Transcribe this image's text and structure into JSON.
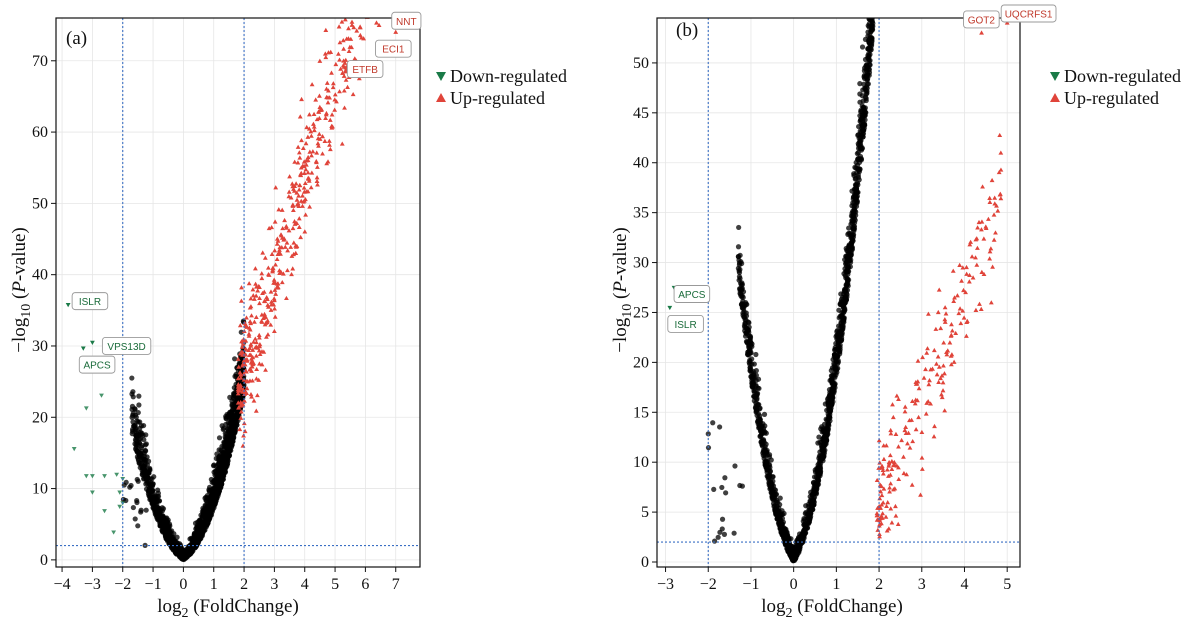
{
  "figure": {
    "legend": {
      "down_label": "Down-regulated",
      "up_label": "Up-regulated"
    },
    "colors": {
      "down": "#1a7a47",
      "up": "#e0443a",
      "ns": "#000000",
      "threshold": "#3a6fc4"
    }
  },
  "chart_data": [
    {
      "type": "scatter",
      "panel_label": "(a)",
      "xlabel": "log2 (FoldChange)",
      "ylabel": "−log10 (P-value)",
      "xlim": [
        -4.2,
        7.8
      ],
      "ylim": [
        -1,
        76
      ],
      "xticks": [
        -4,
        -3,
        -2,
        -1,
        0,
        1,
        2,
        3,
        4,
        5,
        6,
        7
      ],
      "yticks": [
        0,
        10,
        20,
        30,
        40,
        50,
        60,
        70
      ],
      "thresholds": {
        "x": [
          -2,
          2
        ],
        "y": 2
      },
      "grid": true,
      "legend_position": "outside-top-right",
      "labeled_genes": [
        {
          "name": "NNT",
          "x": 7.0,
          "y": 74.0,
          "group": "up"
        },
        {
          "name": "ECI1",
          "x": 6.4,
          "y": 69.8,
          "group": "up"
        },
        {
          "name": "ETFB",
          "x": 5.8,
          "y": 67.5,
          "group": "up"
        },
        {
          "name": "ISLR",
          "x": -3.8,
          "y": 35.8,
          "group": "down"
        },
        {
          "name": "VPS13D",
          "x": -3.0,
          "y": 30.5,
          "group": "down"
        },
        {
          "name": "APCS",
          "x": -3.3,
          "y": 29.7,
          "group": "down"
        }
      ],
      "down_points": [
        [
          -3.2,
          21.3
        ],
        [
          -2.7,
          23.1
        ],
        [
          -3.6,
          15.6
        ],
        [
          -3.0,
          11.8
        ],
        [
          -2.6,
          11.8
        ],
        [
          -3.2,
          11.8
        ],
        [
          -2.2,
          12.0
        ],
        [
          -2.0,
          11.4
        ],
        [
          -3.0,
          9.5
        ],
        [
          -2.1,
          7.5
        ],
        [
          -2.6,
          6.9
        ],
        [
          -2.3,
          3.9
        ],
        [
          -2.1,
          9.5
        ],
        [
          -2.0,
          8.0
        ]
      ]
    },
    {
      "type": "scatter",
      "panel_label": "(b)",
      "xlabel": "log2 (FoldChange)",
      "ylabel": "−log10 (P-value)",
      "xlim": [
        -3.2,
        5.3
      ],
      "ylim": [
        -0.5,
        54.5
      ],
      "xticks": [
        -3,
        -2,
        -1,
        0,
        1,
        2,
        3,
        4,
        5
      ],
      "yticks": [
        0,
        5,
        10,
        15,
        20,
        25,
        30,
        35,
        40,
        45,
        50
      ],
      "thresholds": {
        "x": [
          -2,
          2
        ],
        "y": 2
      },
      "grid": true,
      "legend_position": "outside-top-right",
      "labeled_genes": [
        {
          "name": "GOT2",
          "x": 4.4,
          "y": 53.0,
          "group": "up"
        },
        {
          "name": "UQCRFS1",
          "x": 5.0,
          "y": 54.0,
          "group": "up"
        },
        {
          "name": "APCS",
          "x": -2.8,
          "y": 27.5,
          "group": "down"
        },
        {
          "name": "ISLR",
          "x": -2.9,
          "y": 25.5,
          "group": "down"
        }
      ],
      "down_points": []
    }
  ]
}
